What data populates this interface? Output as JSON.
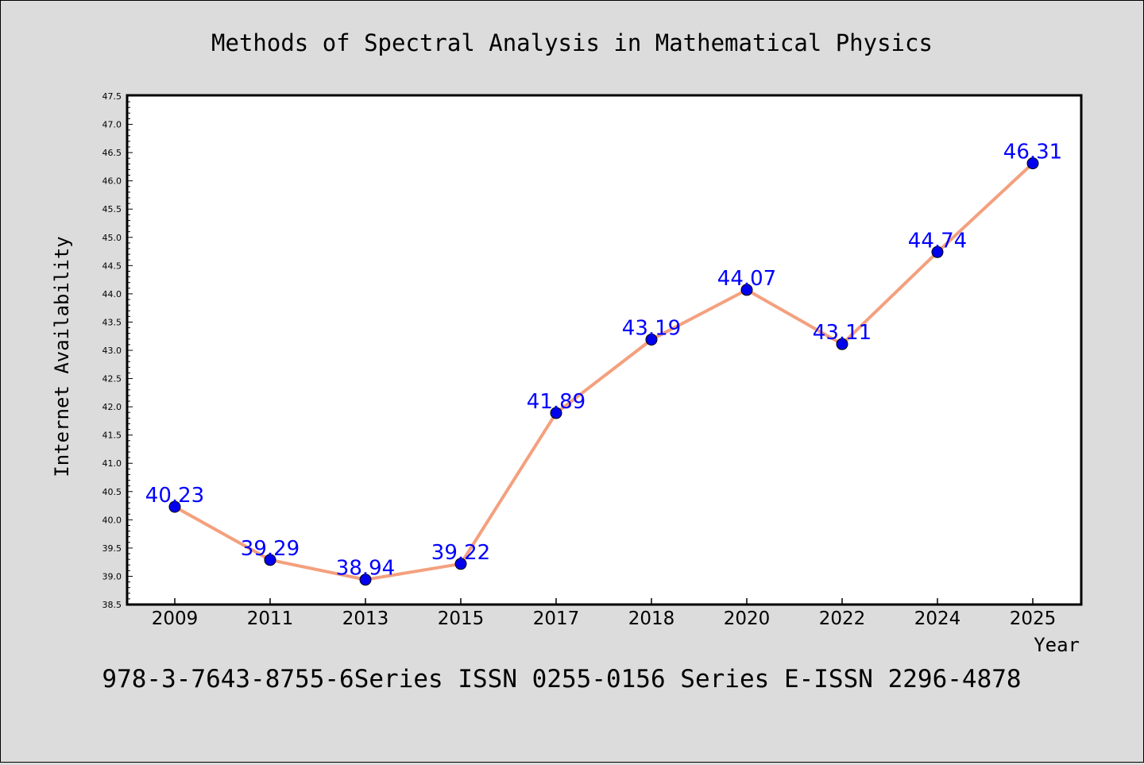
{
  "chart_data": {
    "type": "line",
    "title": "Methods of Spectral Analysis in Mathematical Physics",
    "xlabel": "Year",
    "ylabel": "Internet Availability",
    "categories": [
      "2009",
      "2011",
      "2013",
      "2015",
      "2017",
      "2018",
      "2020",
      "2022",
      "2024",
      "2025"
    ],
    "values": [
      40.23,
      39.29,
      38.94,
      39.22,
      41.89,
      43.19,
      44.07,
      43.11,
      44.74,
      46.31
    ],
    "data_labels": [
      "40.23",
      "39.29",
      "38.94",
      "39.22",
      "41.89",
      "43.19",
      "44.07",
      "43.11",
      "44.74",
      "46.31"
    ],
    "ylim": [
      38.5,
      47.5
    ],
    "yticks": [
      "38.5",
      "39.0",
      "39.5",
      "40.0",
      "40.5",
      "41.0",
      "41.5",
      "42.0",
      "42.5",
      "43.0",
      "43.5",
      "44.0",
      "44.5",
      "45.0",
      "45.5",
      "46.0",
      "46.5",
      "47.0",
      "47.5"
    ],
    "grid": false,
    "line_color": "#f4a07e",
    "marker_color": "#0000ee",
    "label_color": "#0000ff",
    "plot_background": "#ffffff",
    "figure_background": "#dcdcdc"
  },
  "footer_text": "978-3-7643-8755-6Series ISSN 0255-0156 Series E-ISSN 2296-4878"
}
